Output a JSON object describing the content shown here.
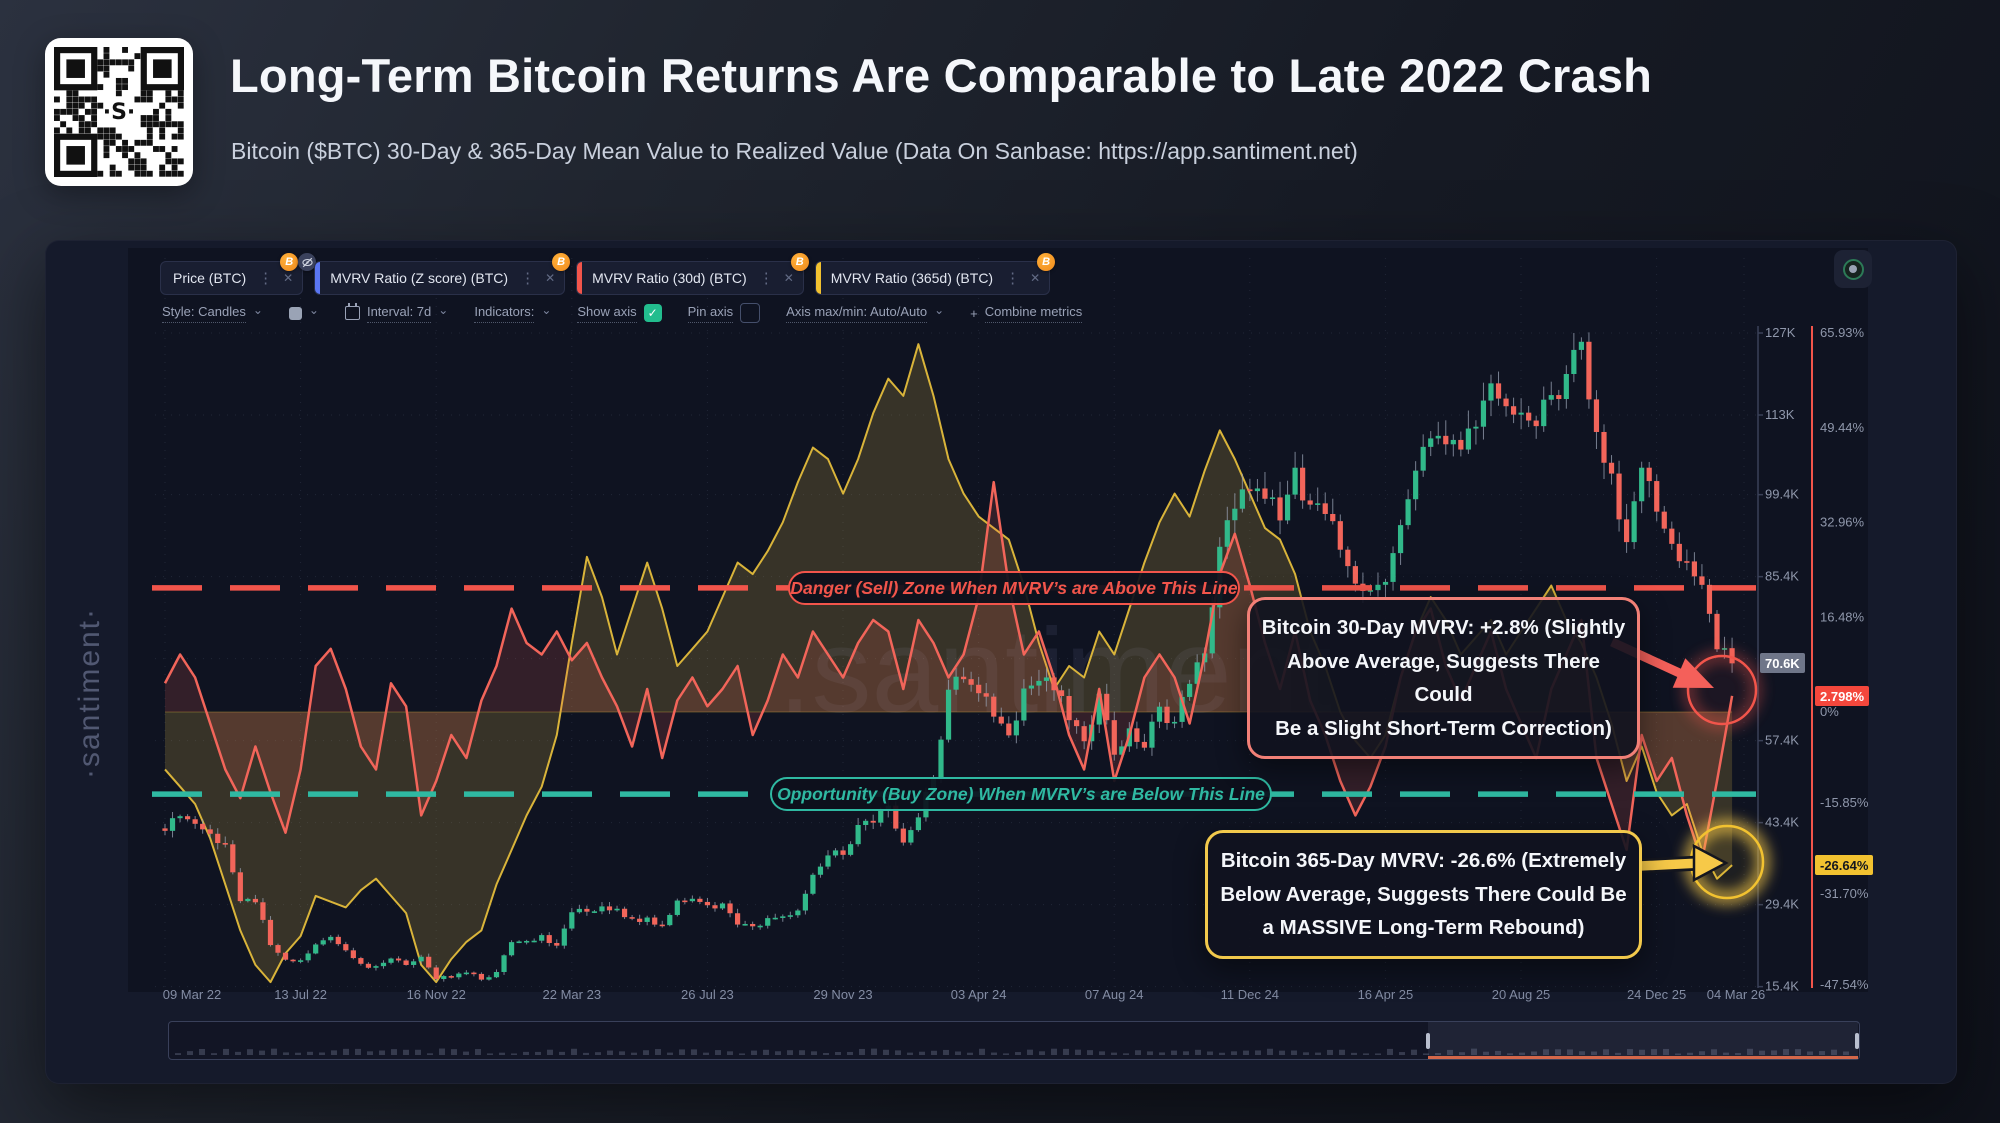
{
  "header": {
    "title": "Long-Term Bitcoin Returns Are Comparable to Late 2022 Crash",
    "subtitle": "Bitcoin ($BTC) 30-Day & 365-Day Mean Value to Realized Value (Data On Sanbase: https://app.santiment.net)"
  },
  "tabs": [
    {
      "label": "Price (BTC)",
      "color": "",
      "badge": "B",
      "hidden_icon": true
    },
    {
      "label": "MVRV Ratio (Z score) (BTC)",
      "color": "#5a76f2",
      "badge": "B",
      "hidden_icon": false
    },
    {
      "label": "MVRV Ratio (30d) (BTC)",
      "color": "#f2554b",
      "badge": "B",
      "hidden_icon": false
    },
    {
      "label": "MVRV Ratio (365d) (BTC)",
      "color": "#f2c230",
      "badge": "B",
      "hidden_icon": false
    }
  ],
  "toolbar": {
    "style": "Style: Candles",
    "interval": "Interval: 7d",
    "indicators": "Indicators:",
    "show_axis": "Show axis",
    "pin_axis": "Pin axis",
    "axis_maxmin": "Axis max/min: Auto/Auto",
    "plus": "+",
    "combine_metrics": "Combine metrics",
    "kebab": "⋮",
    "close": "✕",
    "check": "✓",
    "chevron": "⌄"
  },
  "watermark": {
    "center": ".santiment",
    "side": "·santiment·"
  },
  "zones": {
    "danger_label": "Danger (Sell) Zone When MVRV’s are Above This Line",
    "buy_label": "Opportunity (Buy Zone) When MVRV’s are Below This Line"
  },
  "annotations": {
    "mvrv30": {
      "l1": "Bitcoin 30-Day MVRV: +2.8% (Slightly",
      "l2": "Above Average, Suggests There Could",
      "l3": "Be a Slight Short-Term Correction)"
    },
    "mvrv365": {
      "l1": "Bitcoin 365-Day MVRV: -26.6% (Extremely",
      "l2": "Below Average, Suggests There Could Be",
      "l3": "a MASSIVE Long-Term Rebound)"
    }
  },
  "axes": {
    "price_badge": "70.6K",
    "mvrv30_badge": "2.798%",
    "mvrv365_badge": "-26.64%",
    "price_ticks": [
      {
        "label": "127K",
        "v": 127
      },
      {
        "label": "113K",
        "v": 113
      },
      {
        "label": "99.4K",
        "v": 99.4
      },
      {
        "label": "85.4K",
        "v": 85.4
      },
      {
        "label": "57.4K",
        "v": 57.4
      },
      {
        "label": "43.4K",
        "v": 43.4
      },
      {
        "label": "29.4K",
        "v": 29.4
      },
      {
        "label": "15.4K",
        "v": 15.4
      }
    ],
    "pct_ticks": [
      {
        "label": "65.93%",
        "v": 65.93
      },
      {
        "label": "49.44%",
        "v": 49.44
      },
      {
        "label": "32.96%",
        "v": 32.96
      },
      {
        "label": "16.48%",
        "v": 16.48
      },
      {
        "label": "0%",
        "v": 0
      },
      {
        "label": "-15.85%",
        "v": -15.85
      },
      {
        "label": "-31.70%",
        "v": -31.7
      },
      {
        "label": "-47.54%",
        "v": -47.54
      }
    ],
    "x_labels": [
      "09 Mar 22",
      "13 Jul 22",
      "16 Nov 22",
      "22 Mar 23",
      "26 Jul 23",
      "29 Nov 23",
      "03 Apr 24",
      "07 Aug 24",
      "11 Dec 24",
      "16 Apr 25",
      "20 Aug 25",
      "24 Dec 25",
      "04 Mar 26"
    ]
  },
  "colors": {
    "candle_up": "#31b98a",
    "candle_down": "#f2655a",
    "wick": "#9aa3b5",
    "mvrv30_line": "#f2655a",
    "mvrv30_fill": "rgba(242,101,90,0.16)",
    "mvrv365_line": "#d9b43a",
    "mvrv365_fill": "rgba(214,180,70,0.20)",
    "danger": "#f2554b",
    "buy": "#2fb9a2",
    "axis_text": "#8f97ab",
    "grid": "rgba(150,160,190,0.14)",
    "pct_axis_line": "#f2554b",
    "price_axis_line": "#3a4158",
    "arrow_red": "#f4605a",
    "arrow_yellow": "#f7c948"
  },
  "chart_data": {
    "type": "mixed",
    "subtype": "candlestick + line + baseline-area",
    "interval": "7d",
    "x_range": [
      "09 Mar 22",
      "04 Mar 26"
    ],
    "x_tick_labels": [
      "09 Mar 22",
      "13 Jul 22",
      "16 Nov 22",
      "22 Mar 23",
      "26 Jul 23",
      "29 Nov 23",
      "03 Apr 24",
      "07 Aug 24",
      "11 Dec 24",
      "16 Apr 25",
      "20 Aug 25",
      "24 Dec 25",
      "04 Mar 26"
    ],
    "price_axis": {
      "unit": "USD (thousands)",
      "ticks": [
        127,
        113,
        99.4,
        85.4,
        71.4,
        57.4,
        43.4,
        29.4,
        15.4
      ],
      "last_price_k": 70.6
    },
    "pct_axis": {
      "ticks": [
        65.93,
        49.44,
        32.96,
        16.48,
        0,
        -15.85,
        -31.7,
        -47.54
      ],
      "mvrv30_last_pct": 2.798,
      "mvrv365_last_pct": -26.64
    },
    "thresholds": {
      "danger_zone_pct": 21.6,
      "buy_zone_pct": -14.3
    },
    "points_note": "105 evenly spaced point estimates from 09 Mar 22 to 04 Mar 26, read off chart",
    "series": [
      {
        "name": "Price (BTC)",
        "type": "candlestick",
        "unit": "USD thousands",
        "close": [
          42,
          44.5,
          43.2,
          41.5,
          39.7,
          30,
          29.8,
          22.5,
          20,
          19.9,
          22.6,
          23.9,
          21.6,
          19.3,
          18.9,
          20.2,
          19.1,
          20.5,
          16.7,
          17,
          17.8,
          16.6,
          17.9,
          23,
          23.2,
          24.2,
          22.4,
          28.1,
          28.2,
          29.1,
          28.7,
          27,
          27.2,
          25.9,
          30.1,
          30.4,
          29.3,
          29.6,
          26,
          25.7,
          27.1,
          27.4,
          28.4,
          34.5,
          37.8,
          37.9,
          43,
          43.4,
          46.3,
          40,
          44.3,
          51,
          66.1,
          67.9,
          65.5,
          61.5,
          58.3,
          66.3,
          67.6,
          66,
          60.9,
          57.3,
          65.4,
          55,
          59.5,
          56.2,
          63.2,
          60.6,
          67.1,
          72.3,
          90.5,
          97,
          100,
          98.7,
          95,
          104,
          97.7,
          96.1,
          90,
          84.2,
          83.1,
          84.5,
          94.2,
          103.5,
          109,
          108,
          107.1,
          111,
          118.4,
          114.5,
          113.4,
          111.1,
          116.4,
          120,
          125.5,
          110.1,
          103,
          91.3,
          104,
          96.5,
          91,
          88,
          84,
          73,
          70.6
        ]
      },
      {
        "name": "MVRV Ratio (30d) (BTC)",
        "type": "line",
        "unit": "%",
        "values": [
          5,
          10,
          6,
          -2,
          -10,
          -15,
          -6,
          -14,
          -21,
          -10,
          8,
          11,
          4,
          -6,
          -10,
          5,
          1,
          -18,
          -12,
          -4,
          -8,
          2,
          8,
          18,
          12,
          10,
          14,
          9,
          12,
          6,
          1,
          -6,
          4,
          -8,
          2,
          6,
          1,
          4,
          8,
          -4,
          2,
          10,
          6,
          14,
          10,
          6,
          12,
          16,
          14,
          4,
          16,
          12,
          6,
          10,
          20,
          40,
          22,
          10,
          14,
          6,
          -4,
          -10,
          4,
          -12,
          -4,
          6,
          10,
          6,
          -2,
          10,
          24,
          31,
          22,
          12,
          4,
          14,
          2,
          -4,
          -12,
          -18,
          -13,
          -6,
          6,
          14,
          18,
          8,
          2,
          8,
          14,
          4,
          -2,
          -8,
          4,
          10,
          16,
          -8,
          -16,
          -24,
          -4,
          -12,
          -8,
          -18,
          -26,
          -12,
          2.798
        ]
      },
      {
        "name": "MVRV Ratio (365d) (BTC)",
        "type": "area",
        "unit": "%",
        "values": [
          -10,
          -13,
          -16,
          -22,
          -30,
          -38,
          -44,
          -47,
          -42,
          -39,
          -32,
          -33,
          -34,
          -31,
          -29,
          -32,
          -35,
          -44,
          -47,
          -43,
          -40,
          -38,
          -30,
          -24,
          -18,
          -13,
          -4,
          12,
          27,
          20,
          10,
          18,
          26,
          18,
          8,
          11,
          14,
          20,
          26,
          24,
          28,
          33,
          40,
          46,
          44,
          38,
          44,
          52,
          58,
          55,
          64,
          55,
          44,
          38,
          34,
          32,
          30,
          22,
          12,
          4,
          8,
          6,
          14,
          10,
          18,
          26,
          33,
          38,
          34,
          42,
          49,
          44,
          38,
          32,
          30,
          24,
          14,
          8,
          0,
          -5,
          -8,
          -4,
          6,
          14,
          20,
          16,
          10,
          13,
          16,
          10,
          14,
          18,
          22,
          16,
          12,
          6,
          -2,
          -12,
          -6,
          -14,
          -18,
          -16,
          -24,
          -29,
          -26.64
        ]
      }
    ]
  }
}
